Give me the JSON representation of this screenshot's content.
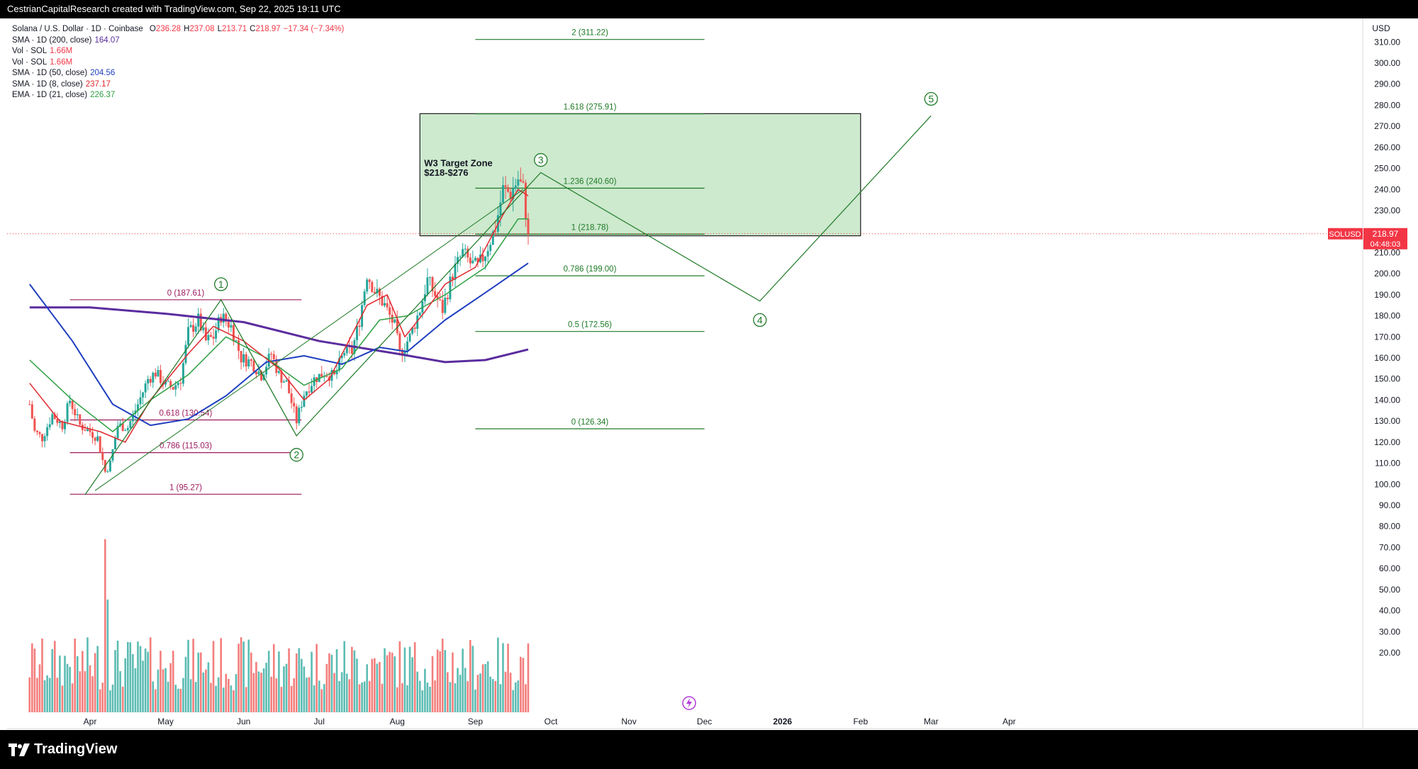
{
  "header": {
    "caption": "CestrianCapitalResearch created with TradingView.com, Sep 22, 2025 19:11 UTC"
  },
  "brand": {
    "name": "TradingView"
  },
  "legend": {
    "title": "Solana / U.S. Dollar · 1D · Coinbase",
    "ohlc": [
      {
        "k": "O",
        "v": "236.28"
      },
      {
        "k": "H",
        "v": "237.08"
      },
      {
        "k": "L",
        "v": "213.71"
      },
      {
        "k": "C",
        "v": "218.97"
      },
      {
        "k": "",
        "v": "−17.34 (−7.34%)"
      }
    ],
    "rows": [
      {
        "label": "SMA · 1D (200, close)",
        "value": "164.07",
        "color": "#5b2c9e"
      },
      {
        "label": "Vol · SOL",
        "value": "1.66M",
        "color": "#f23645"
      },
      {
        "label": "Vol · SOL",
        "value": "1.66M",
        "color": "#f23645"
      },
      {
        "label": "SMA · 1D (50, close)",
        "value": "204.56",
        "color": "#1f3fbf"
      },
      {
        "label": "SMA · 1D (8, close)",
        "value": "237.17",
        "color": "#e0282e"
      },
      {
        "label": "EMA · 1D (21, close)",
        "value": "226.37",
        "color": "#2ea043"
      }
    ]
  },
  "chart_data": {
    "type": "candlestick",
    "symbol": "SOLUSD",
    "currency": "USD",
    "last_price": {
      "value": 218.97,
      "label": "218.97",
      "countdown": "04:48:03"
    },
    "y_axis": {
      "min": 10,
      "max": 315,
      "ticks": [
        20,
        30,
        40,
        50,
        60,
        70,
        80,
        90,
        100,
        110,
        120,
        130,
        140,
        150,
        160,
        170,
        180,
        190,
        200,
        210,
        220,
        230,
        240,
        250,
        260,
        270,
        280,
        290,
        300,
        310
      ],
      "tick_labels": [
        "20.00",
        "30.00",
        "40.00",
        "50.00",
        "60.00",
        "70.00",
        "80.00",
        "90.00",
        "100.00",
        "110.00",
        "120.00",
        "130.00",
        "140.00",
        "150.00",
        "160.00",
        "170.00",
        "180.00",
        "190.00",
        "200.00",
        "210.00",
        "220.00",
        "230.00",
        "240.00",
        "250.00",
        "260.00",
        "270.00",
        "280.00",
        "290.00",
        "300.00",
        "310.00"
      ]
    },
    "x_axis": {
      "start": "2025-03-08",
      "labels": [
        {
          "date": "2025-04-01",
          "text": "Apr"
        },
        {
          "date": "2025-05-01",
          "text": "May"
        },
        {
          "date": "2025-06-01",
          "text": "Jun"
        },
        {
          "date": "2025-07-01",
          "text": "Jul"
        },
        {
          "date": "2025-08-01",
          "text": "Aug"
        },
        {
          "date": "2025-09-01",
          "text": "Sep"
        },
        {
          "date": "2025-10-01",
          "text": "Oct"
        },
        {
          "date": "2025-11-01",
          "text": "Nov"
        },
        {
          "date": "2025-12-01",
          "text": "Dec"
        },
        {
          "date": "2026-01-01",
          "text": "2026"
        },
        {
          "date": "2026-02-01",
          "text": "Feb"
        },
        {
          "date": "2026-03-01",
          "text": "Mar"
        },
        {
          "date": "2026-04-01",
          "text": "Apr"
        }
      ]
    },
    "price_path": [
      [
        "2025-03-08",
        138
      ],
      [
        "2025-03-10",
        125
      ],
      [
        "2025-03-13",
        122
      ],
      [
        "2025-03-17",
        133
      ],
      [
        "2025-03-21",
        128
      ],
      [
        "2025-03-24",
        140
      ],
      [
        "2025-03-28",
        128
      ],
      [
        "2025-04-01",
        125
      ],
      [
        "2025-04-04",
        122
      ],
      [
        "2025-04-07",
        106
      ],
      [
        "2025-04-09",
        110
      ],
      [
        "2025-04-12",
        128
      ],
      [
        "2025-04-16",
        127
      ],
      [
        "2025-04-20",
        138
      ],
      [
        "2025-04-24",
        150
      ],
      [
        "2025-04-27",
        153
      ],
      [
        "2025-05-01",
        147
      ],
      [
        "2025-05-04",
        146
      ],
      [
        "2025-05-07",
        150
      ],
      [
        "2025-05-10",
        172
      ],
      [
        "2025-05-14",
        178
      ],
      [
        "2025-05-17",
        168
      ],
      [
        "2025-05-20",
        170
      ],
      [
        "2025-05-23",
        180
      ],
      [
        "2025-05-27",
        175
      ],
      [
        "2025-05-31",
        160
      ],
      [
        "2025-06-04",
        158
      ],
      [
        "2025-06-08",
        152
      ],
      [
        "2025-06-12",
        162
      ],
      [
        "2025-06-15",
        152
      ],
      [
        "2025-06-18",
        148
      ],
      [
        "2025-06-22",
        130
      ],
      [
        "2025-06-25",
        143
      ],
      [
        "2025-06-29",
        150
      ],
      [
        "2025-07-03",
        153
      ],
      [
        "2025-07-07",
        151
      ],
      [
        "2025-07-11",
        163
      ],
      [
        "2025-07-14",
        163
      ],
      [
        "2025-07-17",
        178
      ],
      [
        "2025-07-20",
        200
      ],
      [
        "2025-07-23",
        192
      ],
      [
        "2025-07-27",
        185
      ],
      [
        "2025-07-31",
        175
      ],
      [
        "2025-08-02",
        162
      ],
      [
        "2025-08-06",
        170
      ],
      [
        "2025-08-10",
        183
      ],
      [
        "2025-08-13",
        197
      ],
      [
        "2025-08-16",
        190
      ],
      [
        "2025-08-19",
        183
      ],
      [
        "2025-08-23",
        200
      ],
      [
        "2025-08-27",
        210
      ],
      [
        "2025-08-30",
        205
      ],
      [
        "2025-09-02",
        203
      ],
      [
        "2025-09-05",
        210
      ],
      [
        "2025-09-09",
        222
      ],
      [
        "2025-09-12",
        240
      ],
      [
        "2025-09-15",
        238
      ],
      [
        "2025-09-18",
        245
      ],
      [
        "2025-09-20",
        240
      ],
      [
        "2025-09-22",
        219
      ]
    ],
    "moving_averages": [
      {
        "name": "SMA 200",
        "color": "#5b2c9e",
        "width": 3,
        "points": [
          [
            "2025-03-08",
            184
          ],
          [
            "2025-04-01",
            184
          ],
          [
            "2025-05-01",
            181
          ],
          [
            "2025-06-01",
            177
          ],
          [
            "2025-07-01",
            168
          ],
          [
            "2025-08-01",
            162
          ],
          [
            "2025-08-20",
            158
          ],
          [
            "2025-09-05",
            159
          ],
          [
            "2025-09-22",
            164
          ]
        ]
      },
      {
        "name": "SMA 50",
        "color": "#1f3fbf",
        "width": 2,
        "points": [
          [
            "2025-03-08",
            195
          ],
          [
            "2025-03-25",
            168
          ],
          [
            "2025-04-10",
            138
          ],
          [
            "2025-04-25",
            128
          ],
          [
            "2025-05-10",
            131
          ],
          [
            "2025-05-25",
            142
          ],
          [
            "2025-06-10",
            158
          ],
          [
            "2025-06-25",
            161
          ],
          [
            "2025-07-10",
            157
          ],
          [
            "2025-07-25",
            165
          ],
          [
            "2025-08-05",
            163
          ],
          [
            "2025-08-20",
            178
          ],
          [
            "2025-09-05",
            191
          ],
          [
            "2025-09-22",
            205
          ]
        ]
      },
      {
        "name": "EMA 21",
        "color": "#2ea043",
        "width": 1.5,
        "points": [
          [
            "2025-03-08",
            159
          ],
          [
            "2025-03-25",
            140
          ],
          [
            "2025-04-10",
            125
          ],
          [
            "2025-04-25",
            140
          ],
          [
            "2025-05-10",
            152
          ],
          [
            "2025-05-25",
            170
          ],
          [
            "2025-06-10",
            160
          ],
          [
            "2025-06-25",
            147
          ],
          [
            "2025-07-10",
            155
          ],
          [
            "2025-07-25",
            178
          ],
          [
            "2025-08-05",
            180
          ],
          [
            "2025-08-20",
            190
          ],
          [
            "2025-09-05",
            203
          ],
          [
            "2025-09-18",
            226
          ],
          [
            "2025-09-22",
            226
          ]
        ]
      },
      {
        "name": "SMA 8",
        "color": "#e0282e",
        "width": 1.5,
        "points": [
          [
            "2025-03-08",
            148
          ],
          [
            "2025-03-20",
            130
          ],
          [
            "2025-04-05",
            125
          ],
          [
            "2025-04-15",
            120
          ],
          [
            "2025-04-25",
            140
          ],
          [
            "2025-05-10",
            162
          ],
          [
            "2025-05-20",
            175
          ],
          [
            "2025-06-01",
            168
          ],
          [
            "2025-06-15",
            155
          ],
          [
            "2025-06-25",
            140
          ],
          [
            "2025-07-05",
            150
          ],
          [
            "2025-07-20",
            185
          ],
          [
            "2025-07-28",
            190
          ],
          [
            "2025-08-04",
            170
          ],
          [
            "2025-08-12",
            182
          ],
          [
            "2025-08-20",
            195
          ],
          [
            "2025-09-01",
            203
          ],
          [
            "2025-09-12",
            228
          ],
          [
            "2025-09-18",
            240
          ],
          [
            "2025-09-22",
            237
          ]
        ]
      }
    ],
    "volume": {
      "y_max": 90,
      "mean": 25
    },
    "fib_purple": {
      "x_start": "2025-03-24",
      "x_end": "2025-06-24",
      "color": "#9c1a5e",
      "levels": [
        {
          "label": "0 (187.61)",
          "value": 187.61
        },
        {
          "label": "0.618 (130.54)",
          "value": 130.54
        },
        {
          "label": "0.786 (115.03)",
          "value": 115.03
        },
        {
          "label": "1 (95.27)",
          "value": 95.27
        }
      ]
    },
    "fib_green": {
      "x_start": "2025-09-01",
      "x_end": "2025-12-01",
      "color": "#1e7a26",
      "levels": [
        {
          "label": "2 (311.22)",
          "value": 311.22
        },
        {
          "label": "1.618 (275.91)",
          "value": 275.91
        },
        {
          "label": "1.236 (240.60)",
          "value": 240.6
        },
        {
          "label": "1 (218.78)",
          "value": 218.78
        },
        {
          "label": "0.786 (199.00)",
          "value": 199.0
        },
        {
          "label": "0.5 (172.56)",
          "value": 172.56
        },
        {
          "label": "0 (126.34)",
          "value": 126.34
        }
      ]
    },
    "target_zone": {
      "title": "W3 Target Zone",
      "subtitle": "$218-$276",
      "x_start": "2025-08-10",
      "x_end": "2026-02-01",
      "low": 218,
      "high": 276
    },
    "elliott_waves": [
      {
        "label": "1",
        "date": "2025-05-23",
        "price": 187.6,
        "label_price": 195
      },
      {
        "label": "2",
        "date": "2025-06-22",
        "price": 123,
        "label_price": 114
      },
      {
        "label": "3",
        "date": "2025-09-27",
        "price": 248,
        "label_price": 254
      },
      {
        "label": "4",
        "date": "2025-12-23",
        "price": 187,
        "label_price": 178
      },
      {
        "label": "5",
        "date": "2026-03-01",
        "price": 275,
        "label_price": 283
      }
    ],
    "wave_start": {
      "date": "2025-03-30",
      "price": 95
    },
    "channel": {
      "line1": [
        [
          "2025-04-03",
          97
        ],
        [
          "2025-09-20",
          240
        ]
      ],
      "line2": [
        [
          "2025-05-23",
          187.6
        ],
        [
          "2025-06-22",
          123
        ]
      ]
    }
  }
}
